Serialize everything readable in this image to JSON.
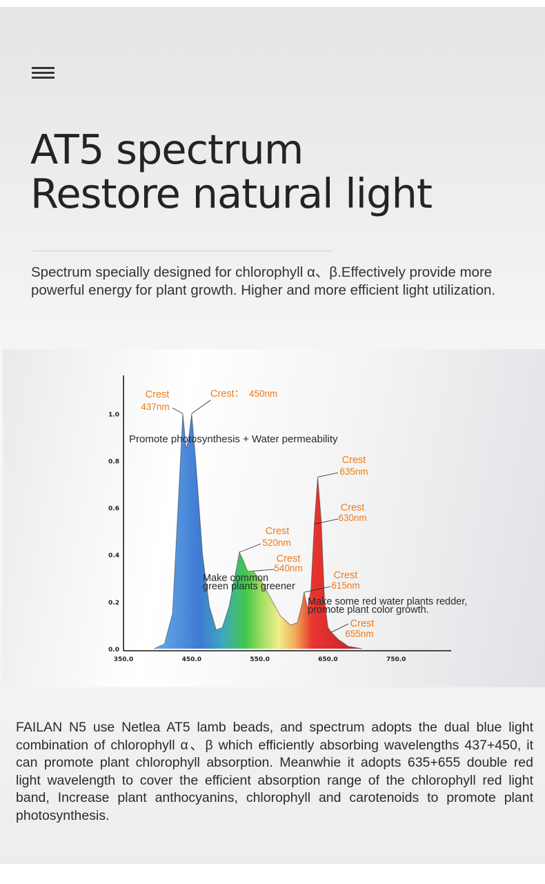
{
  "header": {
    "menu_icon": "hamburger-menu-icon",
    "title_line1": "AT5 spectrum",
    "title_line2": "Restore natural light",
    "intro": "Spectrum specially designed for chlorophyll α、β.Effectively provide more powerful energy for plant growth. Higher and more efficient light utilization."
  },
  "chart_data": {
    "type": "area",
    "title": "",
    "xlabel": "",
    "ylabel": "",
    "x_ticks": [
      "350.0",
      "450.0",
      "550.0",
      "650.0",
      "750.0"
    ],
    "y_ticks": [
      "0.0",
      "0.2",
      "0.4",
      "0.6",
      "0.8",
      "1.0"
    ],
    "xlim": [
      350,
      800
    ],
    "ylim": [
      0,
      1.15
    ],
    "grid": false,
    "colors": {
      "annotation": "#ee7a14",
      "blue": "#2f6fd0",
      "green": "#3fc63a",
      "red": "#e0121b"
    },
    "series": [
      {
        "points": [
          [
            395,
            0
          ],
          [
            410,
            0.02
          ],
          [
            422,
            0.15
          ],
          [
            430,
            0.6
          ],
          [
            437,
            1.0
          ],
          [
            442,
            0.85
          ],
          [
            446,
            0.9
          ],
          [
            450,
            1.0
          ],
          [
            456,
            0.8
          ],
          [
            466,
            0.4
          ],
          [
            476,
            0.18
          ],
          [
            486,
            0.08
          ],
          [
            495,
            0.09
          ],
          [
            505,
            0.18
          ],
          [
            515,
            0.33
          ],
          [
            520,
            0.41
          ],
          [
            525,
            0.38
          ],
          [
            532,
            0.33
          ],
          [
            540,
            0.33
          ],
          [
            552,
            0.29
          ],
          [
            565,
            0.22
          ],
          [
            580,
            0.14
          ],
          [
            595,
            0.1
          ],
          [
            605,
            0.11
          ],
          [
            612,
            0.19
          ],
          [
            615,
            0.24
          ],
          [
            620,
            0.17
          ],
          [
            625,
            0.25
          ],
          [
            630,
            0.53
          ],
          [
            635,
            0.73
          ],
          [
            640,
            0.55
          ],
          [
            645,
            0.2
          ],
          [
            650,
            0.09
          ],
          [
            655,
            0.07
          ],
          [
            665,
            0.04
          ],
          [
            680,
            0.01
          ],
          [
            700,
            0
          ]
        ]
      }
    ],
    "annotations": [
      {
        "x": 437,
        "y": 1.0,
        "label": "Crest",
        "value": "437nm"
      },
      {
        "x": 450,
        "y": 1.0,
        "label": "Crest：",
        "value": "450nm"
      },
      {
        "x": 520,
        "y": 0.41,
        "label": "Crest",
        "value": "520nm"
      },
      {
        "x": 540,
        "y": 0.33,
        "label": "Crest",
        "value": "540nm"
      },
      {
        "x": 615,
        "y": 0.24,
        "label": "Crest",
        "value": "615nm"
      },
      {
        "x": 630,
        "y": 0.53,
        "label": "Crest",
        "value": "630nm"
      },
      {
        "x": 635,
        "y": 0.73,
        "label": "Crest",
        "value": "635nm"
      },
      {
        "x": 655,
        "y": 0.07,
        "label": "Crest",
        "value": "655nm"
      }
    ],
    "notes": [
      "Promote photosynthesis + Water permeability",
      "Make common",
      "green plants greener",
      "Make some red water plants redder,",
      "promote plant color growth."
    ]
  },
  "body": {
    "paragraph": "FAILAN N5 use Netlea AT5 lamb beads, and spectrum adopts the dual blue light combination of chlorophyll α、β which efficiently absorbing wavelengths 437+450, it can promote plant chlorophyll absorption. Meanwhie it adopts 635+655 double red light wavelength to cover the efficient absorption range of the chlorophyll red light band, Increase plant anthocyanins, chlorophyll and carotenoids to promote plant photosynthesis."
  }
}
